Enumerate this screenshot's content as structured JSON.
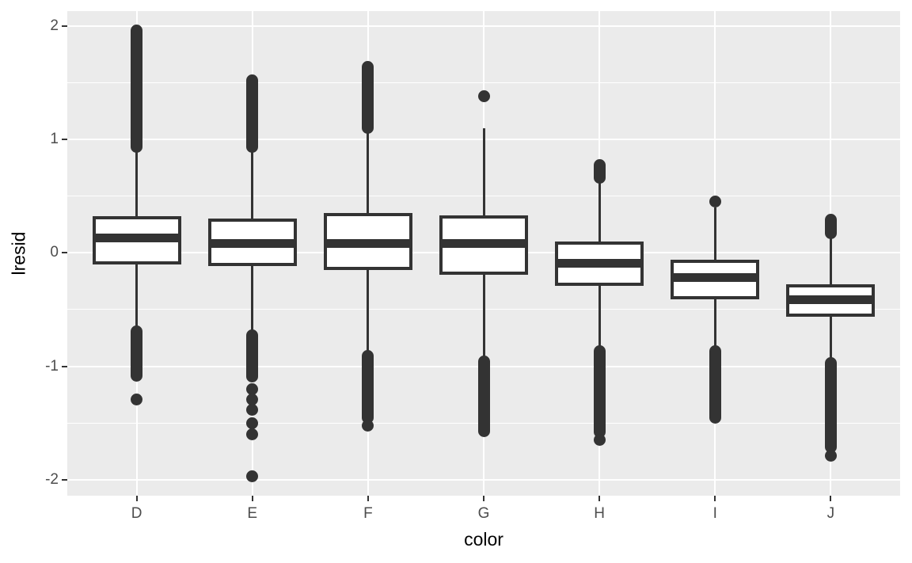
{
  "figure": {
    "background": "#FFFFFF",
    "panel_background": "#EBEBEB",
    "grid_color": "#FFFFFF",
    "line_color": "#333333",
    "box_fill": "#FFFFFF",
    "tick_label_color": "#4D4D4D",
    "axis_title_color": "#000000"
  },
  "chart_data": {
    "type": "boxplot",
    "title": "",
    "xlabel": "color",
    "ylabel": "lresid",
    "categories": [
      "D",
      "E",
      "F",
      "G",
      "H",
      "I",
      "J"
    ],
    "y_major_ticks": [
      2,
      1,
      0,
      -1,
      -2
    ],
    "y_minor_ticks": [
      1.5,
      0.5,
      -0.5,
      -1.5
    ],
    "ylim": [
      -2.14,
      2.13
    ],
    "grid": true,
    "legend_position": "none",
    "boxes": [
      {
        "category": "D",
        "q1": -0.1,
        "median": 0.13,
        "q3": 0.32,
        "whisker_low": -0.67,
        "whisker_high": 0.9,
        "outlier_runs": [
          [
            0.93,
            1.96
          ],
          [
            -0.69,
            -1.08
          ]
        ],
        "outlier_points": [
          -1.29
        ]
      },
      {
        "category": "E",
        "q1": -0.12,
        "median": 0.08,
        "q3": 0.3,
        "whisker_low": -0.71,
        "whisker_high": 0.9,
        "outlier_runs": [
          [
            0.93,
            1.52
          ],
          [
            -0.73,
            -1.09
          ]
        ],
        "outlier_points": [
          -1.2,
          -1.29,
          -1.38,
          -1.5,
          -1.6,
          -1.97
        ]
      },
      {
        "category": "F",
        "q1": -0.15,
        "median": 0.08,
        "q3": 0.35,
        "whisker_low": -0.89,
        "whisker_high": 1.09,
        "outlier_runs": [
          [
            1.1,
            1.64
          ],
          [
            -0.91,
            -1.45
          ]
        ],
        "outlier_points": [
          -1.52
        ]
      },
      {
        "category": "G",
        "q1": -0.19,
        "median": 0.08,
        "q3": 0.33,
        "whisker_low": -0.94,
        "whisker_high": 1.1,
        "outlier_runs": [
          [
            -0.96,
            -1.57
          ]
        ],
        "outlier_points": [
          1.38
        ]
      },
      {
        "category": "H",
        "q1": -0.29,
        "median": -0.09,
        "q3": 0.1,
        "whisker_low": -0.85,
        "whisker_high": 0.64,
        "outlier_runs": [
          [
            0.66,
            0.77
          ],
          [
            -0.87,
            -1.58
          ]
        ],
        "outlier_points": [
          -1.65
        ]
      },
      {
        "category": "I",
        "q1": -0.41,
        "median": -0.22,
        "q3": -0.06,
        "whisker_low": -0.86,
        "whisker_high": 0.4,
        "outlier_runs": [
          [
            -0.87,
            -1.45
          ]
        ],
        "outlier_points": [
          0.45
        ]
      },
      {
        "category": "J",
        "q1": -0.56,
        "median": -0.41,
        "q3": -0.28,
        "whisker_low": -0.96,
        "whisker_high": 0.15,
        "outlier_runs": [
          [
            0.17,
            0.29
          ],
          [
            -0.97,
            -1.71
          ]
        ],
        "outlier_points": [
          -1.79
        ]
      }
    ]
  }
}
